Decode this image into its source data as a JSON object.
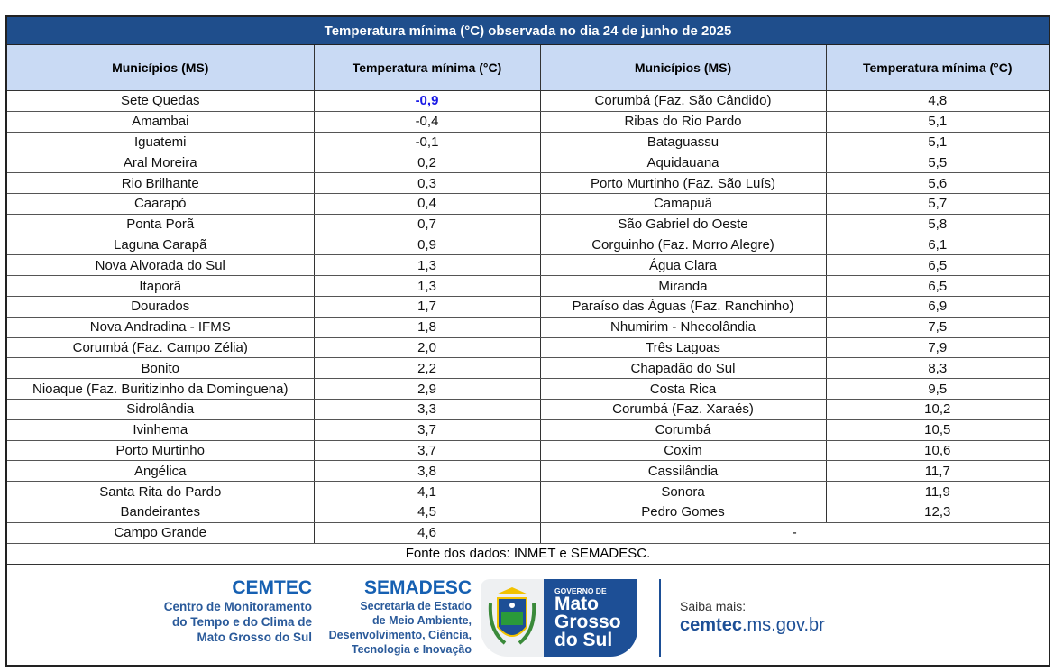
{
  "title": "Temperatura mínima (°C) observada no dia 24 de junho de 2025",
  "headers": [
    "Municípios (MS)",
    "Temperatura mínima (°C)",
    "Municípios (MS)",
    "Temperatura mínima (°C)"
  ],
  "rows": [
    [
      "Sete Quedas",
      "-0,9",
      "Corumbá (Faz. São Cândido)",
      "4,8"
    ],
    [
      "Amambai",
      "-0,4",
      "Ribas do Rio Pardo",
      "5,1"
    ],
    [
      "Iguatemi",
      "-0,1",
      "Bataguassu",
      "5,1"
    ],
    [
      "Aral Moreira",
      "0,2",
      "Aquidauana",
      "5,5"
    ],
    [
      "Rio Brilhante",
      "0,3",
      "Porto Murtinho (Faz. São Luís)",
      "5,6"
    ],
    [
      "Caarapó",
      "0,4",
      "Camapuã",
      "5,7"
    ],
    [
      "Ponta Porã",
      "0,7",
      "São Gabriel do Oeste",
      "5,8"
    ],
    [
      "Laguna Carapã",
      "0,9",
      "Corguinho (Faz. Morro Alegre)",
      "6,1"
    ],
    [
      "Nova Alvorada do Sul",
      "1,3",
      "Água Clara",
      "6,5"
    ],
    [
      "Itaporã",
      "1,3",
      "Miranda",
      "6,5"
    ],
    [
      "Dourados",
      "1,7",
      "Paraíso das Águas (Faz. Ranchinho)",
      "6,9"
    ],
    [
      "Nova Andradina - IFMS",
      "1,8",
      "Nhumirim - Nhecolândia",
      "7,5"
    ],
    [
      "Corumbá (Faz. Campo Zélia)",
      "2,0",
      "Três Lagoas",
      "7,9"
    ],
    [
      "Bonito",
      "2,2",
      "Chapadão do Sul",
      "8,3"
    ],
    [
      "Nioaque (Faz. Buritizinho da Dominguena)",
      "2,9",
      "Costa Rica",
      "9,5"
    ],
    [
      "Sidrolândia",
      "3,3",
      "Corumbá (Faz. Xaraés)",
      "10,2"
    ],
    [
      "Ivinhema",
      "3,7",
      "Corumbá",
      "10,5"
    ],
    [
      "Porto Murtinho",
      "3,7",
      "Coxim",
      "10,6"
    ],
    [
      "Angélica",
      "3,8",
      "Cassilândia",
      "11,7"
    ],
    [
      "Santa Rita do Pardo",
      "4,1",
      "Sonora",
      "11,9"
    ],
    [
      "Bandeirantes",
      "4,5",
      "Pedro Gomes",
      "12,3"
    ],
    [
      "Campo Grande",
      "4,6",
      "-",
      ""
    ]
  ],
  "source": "Fonte dos dados: INMET e SEMADESC.",
  "footer": {
    "cemtec_title": "CEMTEC",
    "cemtec_lines": [
      "Centro de Monitoramento",
      "do Tempo e do Clima de",
      "Mato Grosso do Sul"
    ],
    "semadesc_title": "SEMADESC",
    "semadesc_lines": [
      "Secretaria de Estado",
      "de Meio Ambiente,",
      "Desenvolvimento, Ciência,",
      "Tecnologia e Inovação"
    ],
    "gov_small": "GOVERNO DE",
    "gov_lines": [
      "Mato",
      "Grosso",
      "do Sul"
    ],
    "saiba": "Saiba mais:",
    "url_bold": "cemtec",
    "url_rest": ".ms.gov.br"
  },
  "colors": {
    "header_bar": "#1f4e8c",
    "col_header": "#c9daf4",
    "lowest": "#1a1ae6"
  }
}
